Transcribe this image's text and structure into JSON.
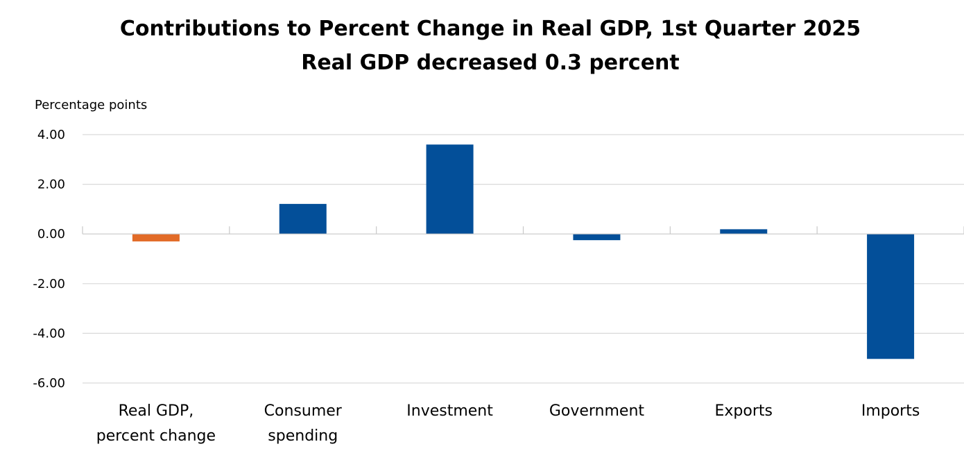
{
  "chart": {
    "title": "Contributions to Percent Change in Real GDP, 1st Quarter 2025",
    "subtitle": "Real GDP decreased 0.3 percent",
    "ylabel": "Percentage points"
  },
  "chart_data": {
    "type": "bar",
    "title": "Contributions to Percent Change in Real GDP, 1st Quarter 2025",
    "subtitle": "Real GDP decreased 0.3 percent",
    "ylabel": "Percentage points",
    "xlabel": "",
    "ylim": [
      -6,
      4
    ],
    "yticks": [
      4,
      2,
      0,
      -2,
      -4,
      -6
    ],
    "ytick_labels": [
      "4.00",
      "2.00",
      "0.00",
      "-2.00",
      "-4.00",
      "-6.00"
    ],
    "grid": true,
    "categories": [
      [
        "Real GDP,",
        "percent change"
      ],
      [
        "Consumer",
        "spending"
      ],
      [
        "Investment"
      ],
      [
        "Government"
      ],
      [
        "Exports"
      ],
      [
        "Imports"
      ]
    ],
    "values": [
      -0.3,
      1.21,
      3.6,
      -0.25,
      0.19,
      -5.03
    ],
    "colors": [
      "#e26b27",
      "#034f99",
      "#034f99",
      "#034f99",
      "#034f99",
      "#034f99"
    ],
    "gridline_color": "#d9d9d9",
    "axis_color": "#c8c8c8"
  }
}
